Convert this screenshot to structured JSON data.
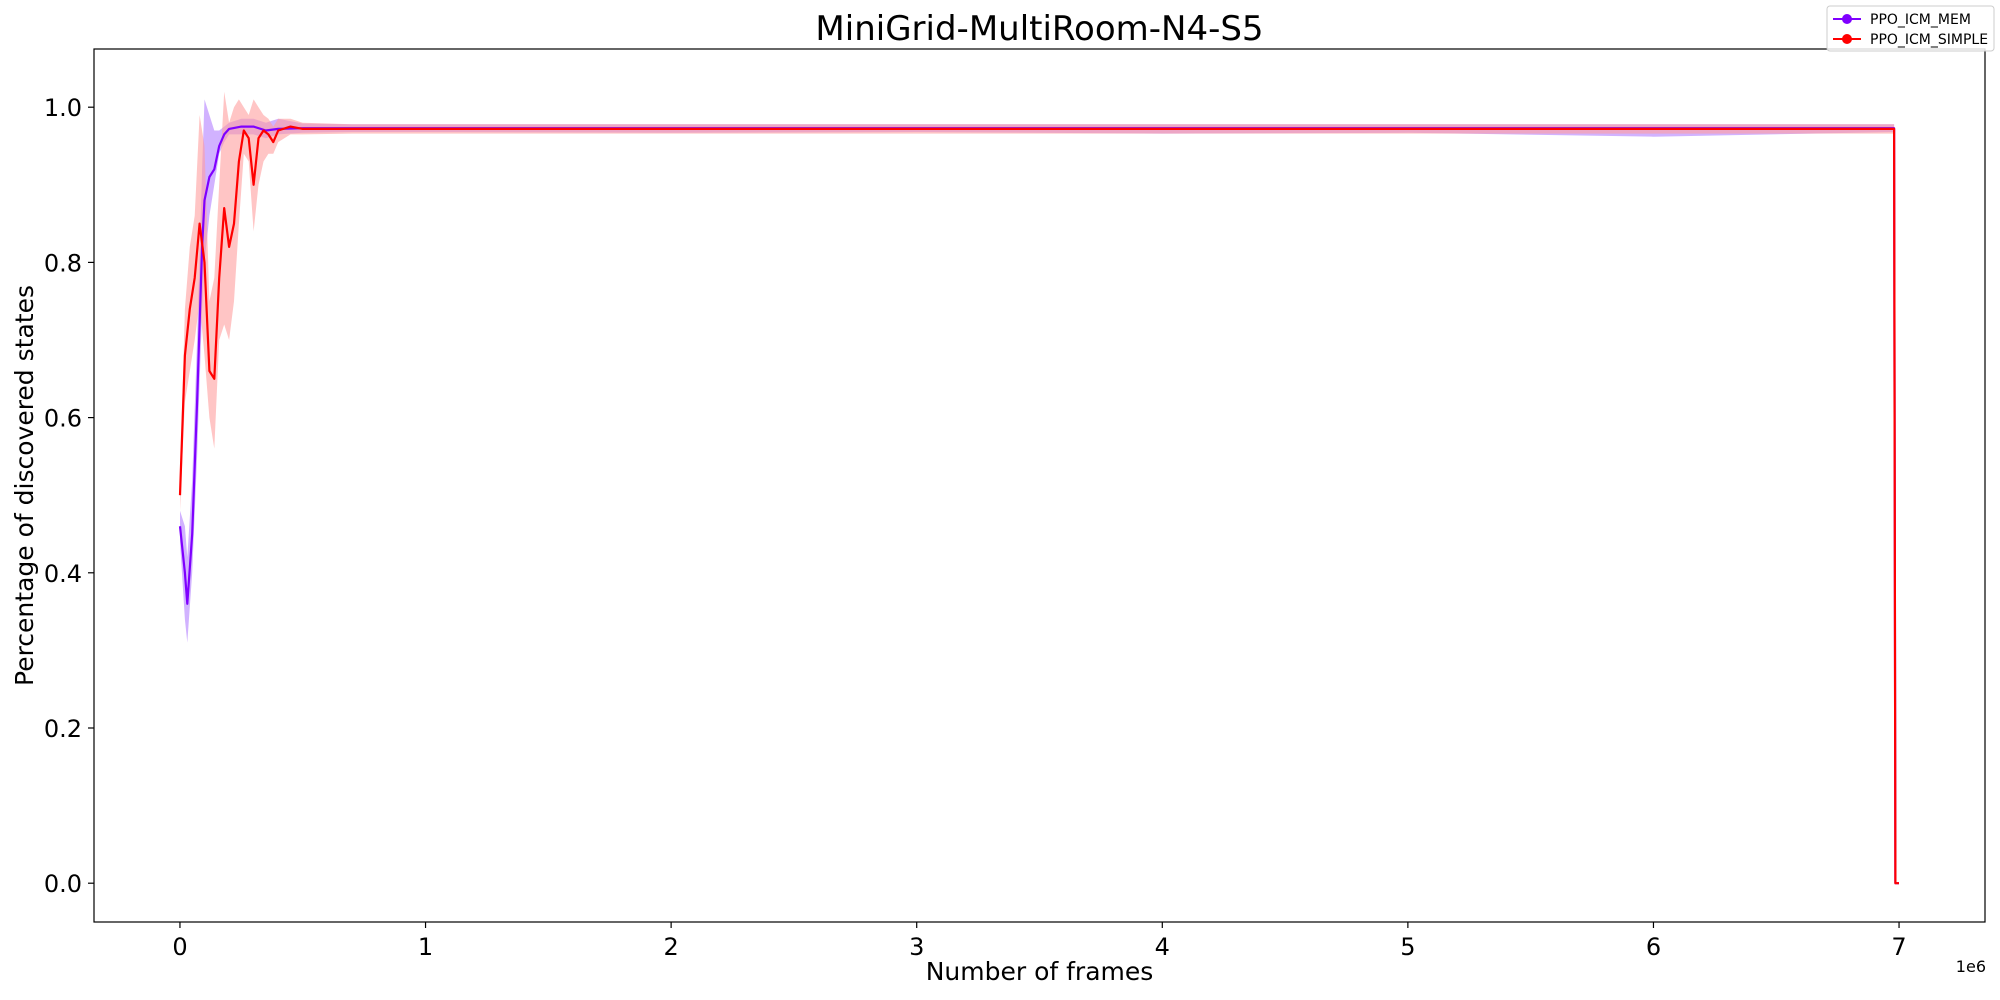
{
  "chart_data": {
    "type": "line",
    "title": "MiniGrid-MultiRoom-N4-S5",
    "xlabel": "Number of frames",
    "ylabel": "Percentage of discovered states",
    "x_offset_label": "1e6",
    "xlim": [
      -0.35,
      7.35
    ],
    "ylim": [
      -0.05,
      1.075
    ],
    "xticks": [
      0,
      1,
      2,
      3,
      4,
      5,
      6,
      7
    ],
    "xtick_labels": [
      "0",
      "1",
      "2",
      "3",
      "4",
      "5",
      "6",
      "7"
    ],
    "yticks": [
      0.0,
      0.2,
      0.4,
      0.6,
      0.8,
      1.0
    ],
    "ytick_labels": [
      "0.0",
      "0.2",
      "0.4",
      "0.6",
      "0.8",
      "1.0"
    ],
    "grid": false,
    "legend_position": "top-right",
    "series": [
      {
        "name": "PPO_ICM_MEM",
        "color": "#7f00ff",
        "band_color": "#b27fff",
        "x": [
          0,
          0.02,
          0.03,
          0.05,
          0.07,
          0.09,
          0.1,
          0.12,
          0.14,
          0.16,
          0.18,
          0.2,
          0.25,
          0.3,
          0.35,
          0.4,
          0.5,
          0.7,
          1.0,
          2.0,
          3.0,
          4.0,
          5.0,
          6.0,
          6.98,
          6.985,
          7.0
        ],
        "y": [
          0.46,
          0.4,
          0.36,
          0.45,
          0.62,
          0.82,
          0.88,
          0.91,
          0.92,
          0.95,
          0.965,
          0.972,
          0.975,
          0.975,
          0.97,
          0.972,
          0.973,
          0.973,
          0.973,
          0.973,
          0.973,
          0.973,
          0.973,
          0.973,
          0.973,
          0.0,
          0.0
        ],
        "lower": [
          0.44,
          0.34,
          0.31,
          0.4,
          0.55,
          0.74,
          0.8,
          0.86,
          0.9,
          0.94,
          0.955,
          0.965,
          0.965,
          0.965,
          0.96,
          0.965,
          0.967,
          0.968,
          0.968,
          0.967,
          0.968,
          0.966,
          0.967,
          0.962,
          0.968,
          0.0,
          0.0
        ],
        "upper": [
          0.48,
          0.46,
          0.42,
          0.52,
          0.7,
          0.92,
          1.01,
          0.99,
          0.97,
          0.97,
          0.975,
          0.98,
          0.985,
          0.985,
          0.98,
          0.985,
          0.979,
          0.978,
          0.978,
          0.978,
          0.978,
          0.978,
          0.978,
          0.978,
          0.978,
          0.0,
          0.0
        ]
      },
      {
        "name": "PPO_ICM_SIMPLE",
        "color": "#ff0000",
        "band_color": "#ff9e9e",
        "x": [
          0,
          0.02,
          0.04,
          0.06,
          0.08,
          0.1,
          0.12,
          0.14,
          0.16,
          0.18,
          0.2,
          0.22,
          0.24,
          0.26,
          0.28,
          0.3,
          0.32,
          0.34,
          0.36,
          0.38,
          0.4,
          0.45,
          0.5,
          0.7,
          1.0,
          2.0,
          3.0,
          4.0,
          5.0,
          6.0,
          6.98,
          6.985,
          7.0
        ],
        "y": [
          0.5,
          0.68,
          0.74,
          0.78,
          0.85,
          0.8,
          0.66,
          0.65,
          0.78,
          0.87,
          0.82,
          0.85,
          0.93,
          0.97,
          0.96,
          0.9,
          0.96,
          0.97,
          0.965,
          0.955,
          0.97,
          0.975,
          0.972,
          0.972,
          0.972,
          0.972,
          0.972,
          0.972,
          0.972,
          0.972,
          0.972,
          0.0,
          0.0
        ],
        "lower": [
          0.48,
          0.62,
          0.66,
          0.7,
          0.75,
          0.68,
          0.6,
          0.56,
          0.7,
          0.72,
          0.7,
          0.75,
          0.85,
          0.94,
          0.93,
          0.84,
          0.9,
          0.93,
          0.94,
          0.94,
          0.955,
          0.965,
          0.965,
          0.966,
          0.966,
          0.966,
          0.966,
          0.966,
          0.966,
          0.966,
          0.966,
          0.0,
          0.0
        ],
        "upper": [
          0.52,
          0.74,
          0.82,
          0.86,
          0.99,
          0.95,
          0.75,
          0.78,
          0.9,
          1.02,
          0.98,
          1.0,
          1.01,
          1.0,
          0.99,
          1.01,
          1.0,
          0.99,
          0.985,
          0.975,
          0.985,
          0.985,
          0.98,
          0.978,
          0.978,
          0.978,
          0.978,
          0.978,
          0.978,
          0.978,
          0.978,
          0.0,
          0.0
        ]
      }
    ]
  }
}
